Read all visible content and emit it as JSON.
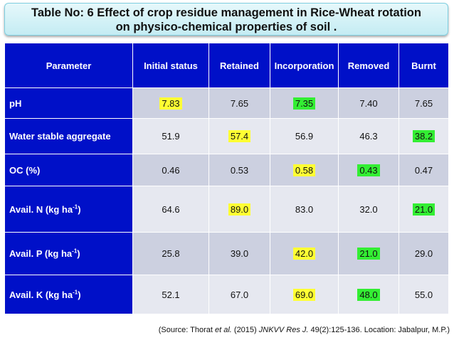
{
  "title": {
    "line1": "Table No: 6 Effect of crop residue management in Rice-Wheat rotation",
    "line2": "on physico-chemical properties of soil ."
  },
  "table": {
    "headers": [
      "Parameter",
      "Initial status",
      "Retained",
      "Incorporation",
      "Removed",
      "Burnt"
    ],
    "rows": [
      {
        "label": "pH",
        "values": [
          "7.83",
          "7.65",
          "7.35",
          "7.40",
          "7.65"
        ]
      },
      {
        "label": "Water stable aggregate",
        "values": [
          "51.9",
          "57.4",
          "56.9",
          "46.3",
          "38.2"
        ]
      },
      {
        "label": "OC (%)",
        "values": [
          "0.46",
          "0.53",
          "0.58",
          "0.43",
          "0.47"
        ]
      },
      {
        "label_pre": "Avail. N (kg ha",
        "label_sup": "-1",
        "label_post": ")",
        "values": [
          "64.6",
          "89.0",
          "83.0",
          "32.0",
          "21.0"
        ]
      },
      {
        "label_pre": "Avail. P (kg ha",
        "label_sup": "-1",
        "label_post": ")",
        "values": [
          "25.8",
          "39.0",
          "42.0",
          "21.0",
          "29.0"
        ]
      },
      {
        "label_pre": "Avail. K (kg ha",
        "label_sup": "-1",
        "label_post": ")",
        "values": [
          "52.1",
          "67.0",
          "69.0",
          "48.0",
          "55.0"
        ]
      }
    ]
  },
  "source": {
    "prefix": "(Source: Thorat ",
    "etal": "et al.",
    "mid": " (2015) ",
    "journal": "JNKVV Res J.",
    "suffix": " 49(2):125-136. Location: Jabalpur, M.P.)"
  },
  "colors": {
    "header_bg": "#0010c8",
    "highlight_yellow": "#ffff33",
    "highlight_green": "#33ee33"
  }
}
